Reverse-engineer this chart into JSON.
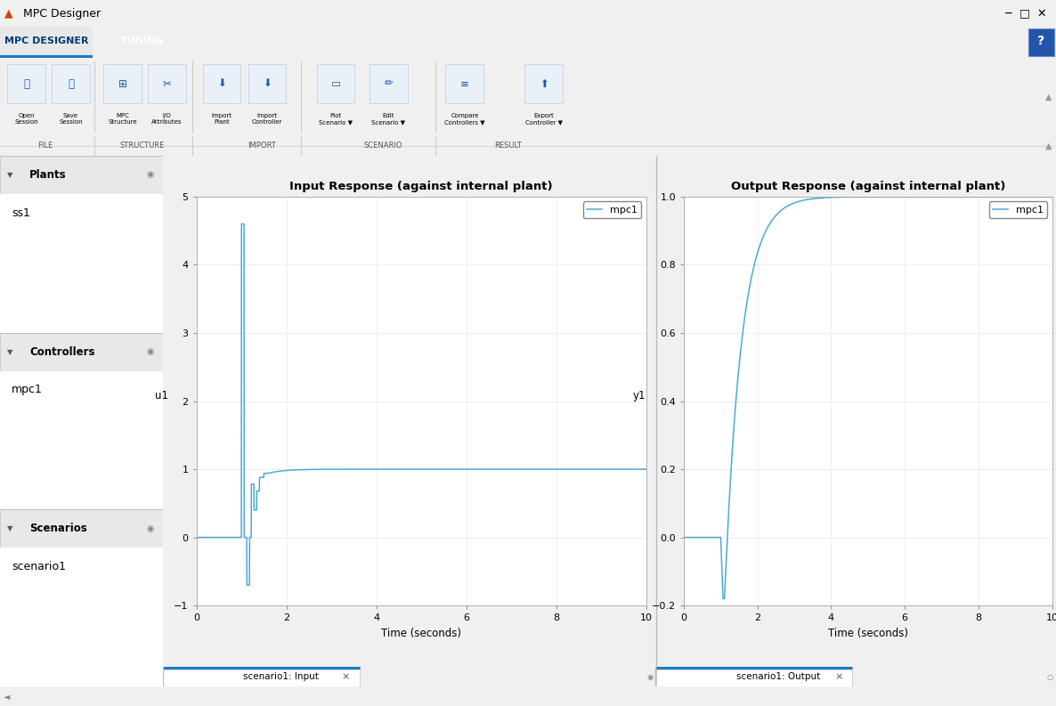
{
  "window_title": "MPC Designer",
  "tab1": "MPC DESIGNER",
  "tab2": "TUNING",
  "panel_left_title": "Plants",
  "panel_left_plant": "ss1",
  "panel_controllers_title": "Controllers",
  "panel_controllers_item": "mpc1",
  "panel_scenarios_title": "Scenarios",
  "panel_scenarios_item": "scenario1",
  "input_tab_label": "scenario1: Input",
  "output_tab_label": "scenario1: Output",
  "input_title": "Input Response (against internal plant)",
  "output_title": "Output Response (against internal plant)",
  "input_xlabel": "Time (seconds)",
  "input_ylabel": "u1",
  "output_xlabel": "Time (seconds)",
  "output_ylabel": "y1",
  "input_xlim": [
    0,
    10
  ],
  "input_ylim": [
    -1,
    5
  ],
  "output_xlim": [
    0,
    10
  ],
  "output_ylim": [
    -0.2,
    1.0
  ],
  "input_xticks": [
    0,
    2,
    4,
    6,
    8,
    10
  ],
  "input_yticks": [
    -1,
    0,
    1,
    2,
    3,
    4,
    5
  ],
  "output_xticks": [
    0,
    2,
    4,
    6,
    8,
    10
  ],
  "output_yticks": [
    -0.2,
    0.0,
    0.2,
    0.4,
    0.6,
    0.8,
    1.0
  ],
  "legend_label": "mpc1",
  "line_color": "#4ea8d9",
  "plot_bg": "#ffffff",
  "titlebar_bg": "#f0f0f0",
  "titlebar_text": "#000000",
  "tab_active_bg": "#ffffff",
  "tab_bar_bg": "#003b75",
  "toolbar_bg": "#f0f0f0",
  "left_panel_bg": "#f0f0f0",
  "section_header_bg": "#e8e8e8",
  "section_header_border": "#c8c8c8",
  "section_content_bg": "#ffffff",
  "content_area_bg": "#e8e8e8",
  "tab_strip_bg": "#e0e0e0",
  "active_tab_underline": "#1a7abf",
  "scrollbar_bg": "#d0d0d0"
}
